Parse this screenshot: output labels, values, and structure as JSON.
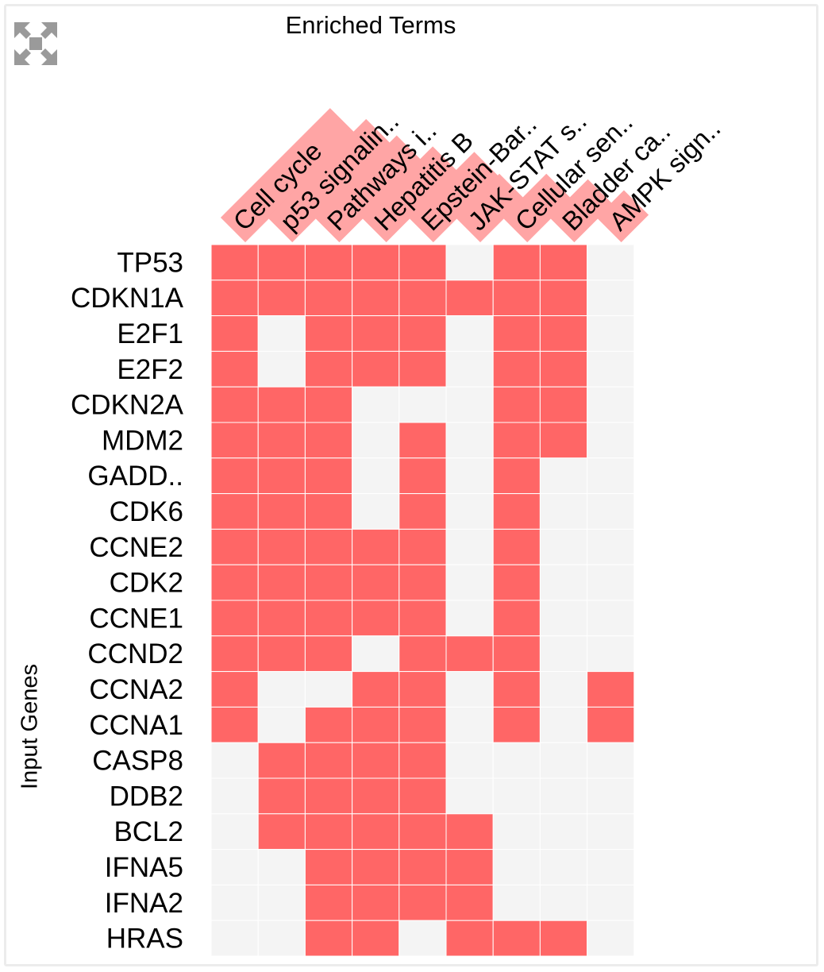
{
  "expand_icon": "expand-arrows-icon",
  "colors": {
    "on": "#ff6666",
    "off": "#f4f4f4",
    "label_highlight": "#ffa5a5"
  },
  "chart_data": {
    "type": "heatmap",
    "title": "Enriched Terms",
    "ylabel": "Input Genes",
    "columns": [
      "Cell cycle",
      "p53 signalin..",
      "Pathways i..",
      "Hepatitis B",
      "Epstein-Bar..",
      "JAK-STAT s..",
      "Cellular sen..",
      "Bladder ca..",
      "AMPK sign.."
    ],
    "rows": [
      "TP53",
      "CDKN1A",
      "E2F1",
      "E2F2",
      "CDKN2A",
      "MDM2",
      "GADD..",
      "CDK6",
      "CCNE2",
      "CDK2",
      "CCNE1",
      "CCND2",
      "CCNA2",
      "CCNA1",
      "CASP8",
      "DDB2",
      "BCL2",
      "IFNA5",
      "IFNA2",
      "HRAS"
    ],
    "column_highlight": [
      1.0,
      0.9,
      0.75,
      0.65,
      0.6,
      0.4,
      0.4,
      0.35,
      0.25
    ],
    "values": [
      [
        1,
        1,
        1,
        1,
        1,
        0,
        1,
        1,
        0
      ],
      [
        1,
        1,
        1,
        1,
        1,
        1,
        1,
        1,
        0
      ],
      [
        1,
        0,
        1,
        1,
        1,
        0,
        1,
        1,
        0
      ],
      [
        1,
        0,
        1,
        1,
        1,
        0,
        1,
        1,
        0
      ],
      [
        1,
        1,
        1,
        0,
        0,
        0,
        1,
        1,
        0
      ],
      [
        1,
        1,
        1,
        0,
        1,
        0,
        1,
        1,
        0
      ],
      [
        1,
        1,
        1,
        0,
        1,
        0,
        1,
        0,
        0
      ],
      [
        1,
        1,
        1,
        0,
        1,
        0,
        1,
        0,
        0
      ],
      [
        1,
        1,
        1,
        1,
        1,
        0,
        1,
        0,
        0
      ],
      [
        1,
        1,
        1,
        1,
        1,
        0,
        1,
        0,
        0
      ],
      [
        1,
        1,
        1,
        1,
        1,
        0,
        1,
        0,
        0
      ],
      [
        1,
        1,
        1,
        0,
        1,
        1,
        1,
        0,
        0
      ],
      [
        1,
        0,
        0,
        1,
        1,
        0,
        1,
        0,
        1
      ],
      [
        1,
        0,
        1,
        1,
        1,
        0,
        1,
        0,
        1
      ],
      [
        0,
        1,
        1,
        1,
        1,
        0,
        0,
        0,
        0
      ],
      [
        0,
        1,
        1,
        1,
        1,
        0,
        0,
        0,
        0
      ],
      [
        0,
        1,
        1,
        1,
        1,
        1,
        0,
        0,
        0
      ],
      [
        0,
        0,
        1,
        1,
        1,
        1,
        0,
        0,
        0
      ],
      [
        0,
        0,
        1,
        1,
        1,
        1,
        0,
        0,
        0
      ],
      [
        0,
        0,
        1,
        1,
        0,
        1,
        1,
        1,
        0
      ]
    ]
  }
}
